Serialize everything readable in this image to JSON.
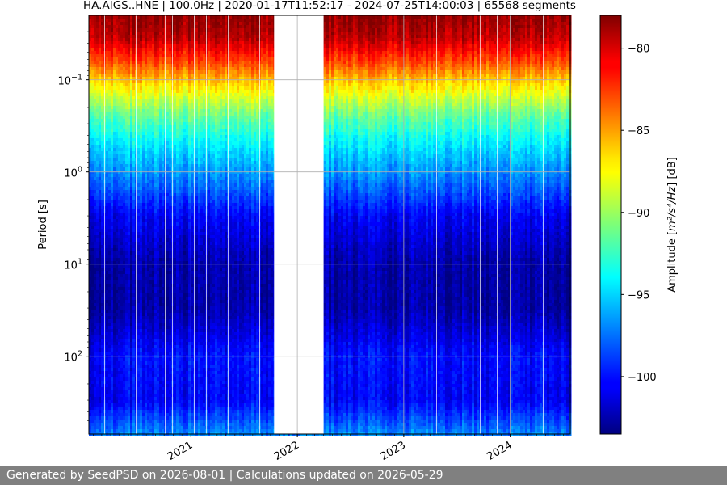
{
  "chart_data": {
    "type": "heatmap",
    "title": "HA.AIGS..HNE | 100.0Hz | 2020-01-17T11:52:17 - 2024-07-25T14:00:03 | 65568 segments",
    "xlabel": "",
    "ylabel": "Period [s]",
    "y_scale": "log",
    "y_inverted": true,
    "xlim": [
      "2020-01-17",
      "2024-07-25"
    ],
    "ylim": [
      0.02,
      700
    ],
    "x_ticks": [
      {
        "date": "2021-01-01",
        "label": "2021"
      },
      {
        "date": "2022-01-01",
        "label": "2022"
      },
      {
        "date": "2023-01-01",
        "label": "2023"
      },
      {
        "date": "2024-01-01",
        "label": "2024"
      }
    ],
    "y_ticks": [
      {
        "value": 0.1,
        "base": "10",
        "exp": "−1"
      },
      {
        "value": 1,
        "base": "10",
        "exp": "0"
      },
      {
        "value": 10,
        "base": "10",
        "exp": "1"
      },
      {
        "value": 100,
        "base": "10",
        "exp": "2"
      }
    ],
    "data_gap": {
      "start": "2021-10-15",
      "end": "2022-04-01"
    },
    "colorbar": {
      "label_prefix": "Amplitude [",
      "label_math": "m²/s⁴/Hz",
      "label_suffix": "] [dB]",
      "colormap": "jet",
      "range": [
        -103.5,
        -78
      ],
      "ticks": [
        {
          "value": -80,
          "label": "−80"
        },
        {
          "value": -85,
          "label": "−85"
        },
        {
          "value": -90,
          "label": "−90"
        },
        {
          "value": -95,
          "label": "−95"
        },
        {
          "value": -100,
          "label": "−100"
        }
      ]
    },
    "amplitude_profile": [
      {
        "period": 0.02,
        "db": -78.5
      },
      {
        "period": 0.035,
        "db": -79.5
      },
      {
        "period": 0.05,
        "db": -81.5
      },
      {
        "period": 0.07,
        "db": -83.5
      },
      {
        "period": 0.1,
        "db": -86
      },
      {
        "period": 0.15,
        "db": -88.5
      },
      {
        "period": 0.25,
        "db": -91.5
      },
      {
        "period": 0.4,
        "db": -93.5
      },
      {
        "period": 0.7,
        "db": -95.5
      },
      {
        "period": 1.5,
        "db": -98
      },
      {
        "period": 3,
        "db": -100.5
      },
      {
        "period": 10,
        "db": -102.5
      },
      {
        "period": 30,
        "db": -102.5
      },
      {
        "period": 50,
        "db": -101.5
      },
      {
        "period": 100,
        "db": -100
      },
      {
        "period": 300,
        "db": -100.5
      },
      {
        "period": 700,
        "db": -97
      }
    ],
    "grid": true
  },
  "footer": {
    "text": "Generated by SeedPSD on 2026-08-01 | Calculations updated on 2026-05-29"
  }
}
